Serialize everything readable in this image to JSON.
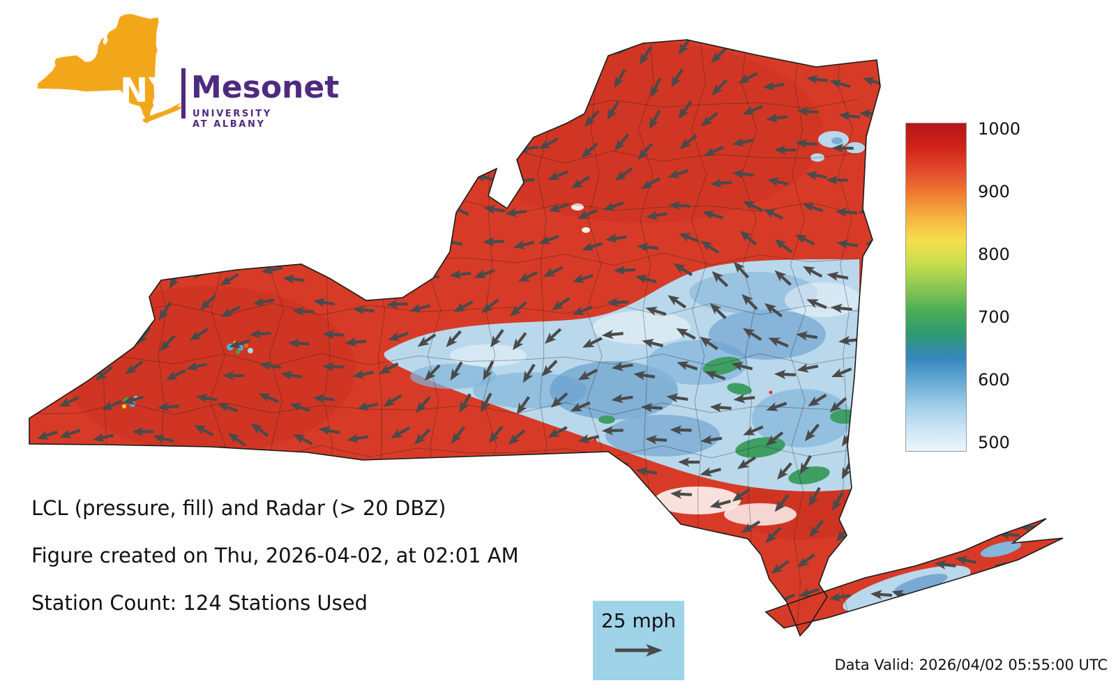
{
  "logo": {
    "nys_label": "NYS",
    "mesonet_label": "Mesonet",
    "university_label": "UNIVERSITY AT ALBANY",
    "state_color": "#F2A71B",
    "purple": "#4F2A7F"
  },
  "colorbar": {
    "tick_labels": [
      "1000",
      "900",
      "800",
      "700",
      "600",
      "500"
    ],
    "colors_top_to_bottom": [
      "#b5161a",
      "#cf2318",
      "#e24a2b",
      "#ef7b33",
      "#f6b13f",
      "#f4e04b",
      "#c8dd4e",
      "#8cc751",
      "#4aae57",
      "#2f9a70",
      "#3585bc",
      "#64a9d4",
      "#9ccbe6",
      "#c9e4f3",
      "#ecf6fc"
    ]
  },
  "caption": {
    "line1": "LCL (pressure, fill) and Radar (> 20 DBZ)",
    "line2": "Figure created on Thu, 2026-04-02, at 02:01 AM",
    "line3": "Station Count: 124 Stations Used"
  },
  "wind_legend": {
    "label": "25 mph",
    "bg_color": "#9fd3e8"
  },
  "footer": {
    "data_valid": "Data Valid: 2026/04/02 05:55:00 UTC"
  },
  "map_colors": {
    "base_red": "#d73b27",
    "dark_red": "#c1271b",
    "blue_light": "#b9d8ec",
    "blue_mid": "#85b6dc",
    "blue_dark": "#5e97c8",
    "green": "#3f9e63",
    "white_patch": "#f2f8fc",
    "arrow": "#4a4a4a",
    "outline": "#1a1a1a",
    "legend_bg": "#9fd3e8"
  }
}
